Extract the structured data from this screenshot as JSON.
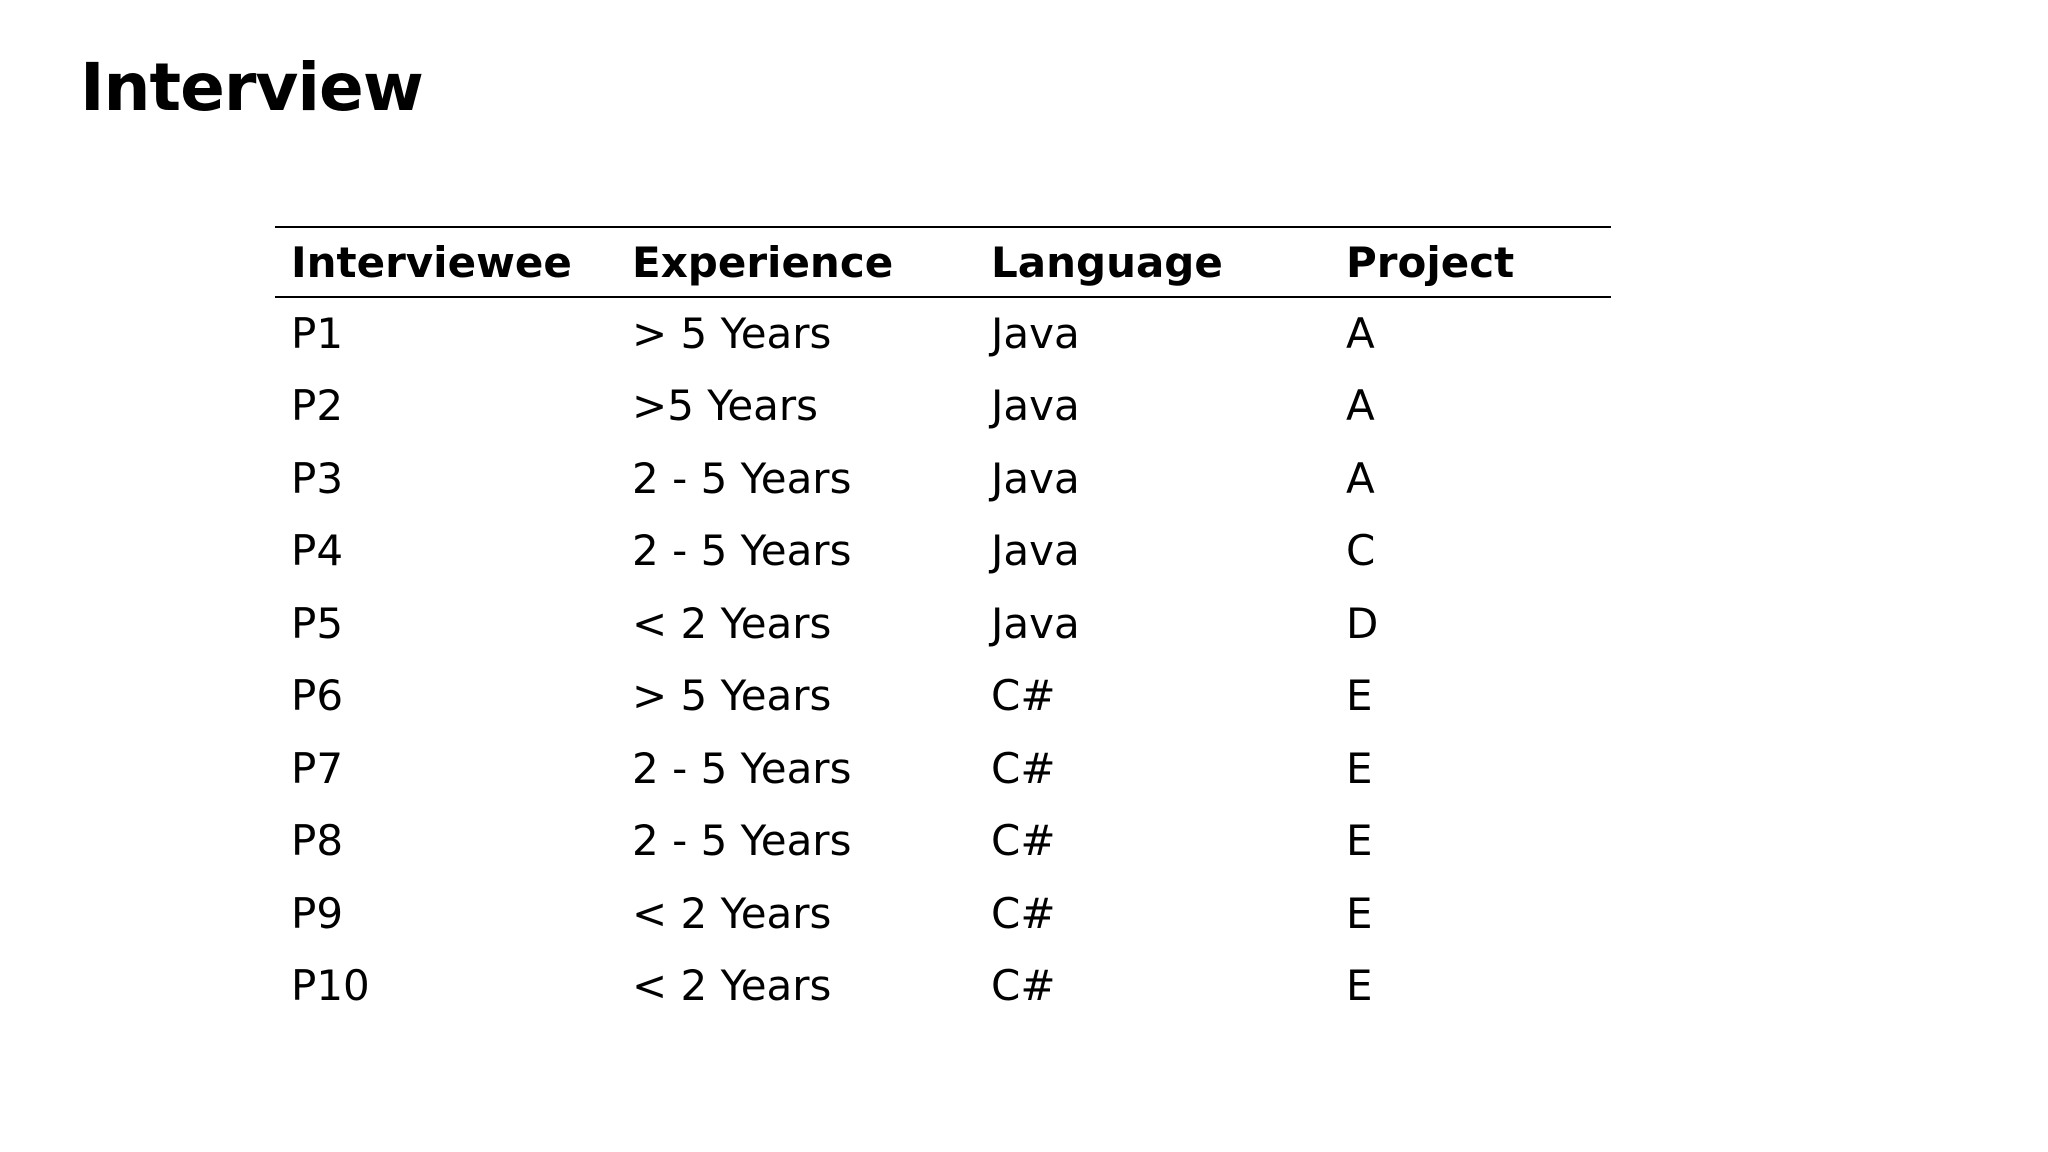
{
  "page": {
    "title": "Interview"
  },
  "table": {
    "columns": [
      "Interviewee",
      "Experience",
      "Language",
      "Project"
    ],
    "rows": [
      [
        "P1",
        "> 5 Years",
        "Java",
        "A"
      ],
      [
        "P2",
        ">5 Years",
        "Java",
        "A"
      ],
      [
        "P3",
        "2 - 5 Years",
        "Java",
        "A"
      ],
      [
        "P4",
        "2 - 5 Years",
        "Java",
        "C"
      ],
      [
        "P5",
        "< 2 Years",
        "Java",
        "D"
      ],
      [
        "P6",
        "> 5 Years",
        "C#",
        "E"
      ],
      [
        "P7",
        "2 - 5 Years",
        "C#",
        "E"
      ],
      [
        "P8",
        "2 - 5 Years",
        "C#",
        "E"
      ],
      [
        "P9",
        "< 2 Years",
        "C#",
        "E"
      ],
      [
        "P10",
        "< 2 Years",
        "C#",
        "E"
      ]
    ]
  }
}
